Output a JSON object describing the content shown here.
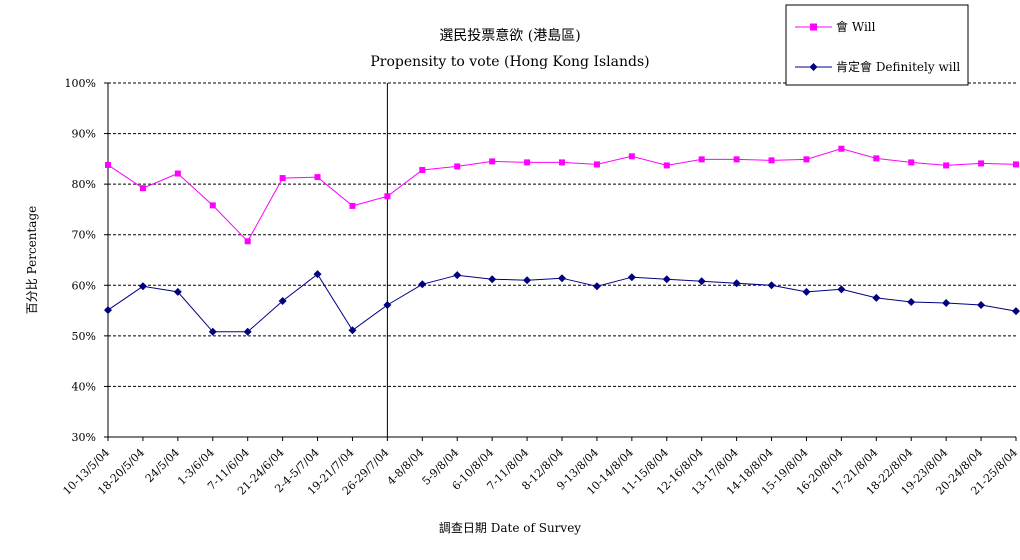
{
  "chart_data": {
    "type": "line",
    "title": "選民投票意欲 (港島區)",
    "subtitle": "Propensity to vote (Hong Kong Islands)",
    "xlabel": "調查日期 Date of Survey",
    "ylabel": "百分比 Percentage",
    "ylim": [
      30,
      100
    ],
    "yticks": [
      "30%",
      "40%",
      "50%",
      "60%",
      "70%",
      "80%",
      "90%",
      "100%"
    ],
    "ytick_values": [
      30,
      40,
      50,
      60,
      70,
      80,
      90,
      100
    ],
    "grid": true,
    "legend": "top-right",
    "categories": [
      "10-13/5/04",
      "18-20/5/04",
      "24/5/04",
      "1-3/6/04",
      "7-11/6/04",
      "21-24/6/04",
      "2-4-5/7/04",
      "19-21/7/04",
      "26-29/7/04",
      "4-8/8/04",
      "5-9/8/04",
      "6-10/8/04",
      "7-11/8/04",
      "8-12/8/04",
      "9-13/8/04",
      "10-14/8/04",
      "11-15/8/04",
      "12-16/8/04",
      "13-17/8/04",
      "14-18/8/04",
      "15-19/8/04",
      "16-20/8/04",
      "17-21/8/04",
      "18-22/8/04",
      "19-23/8/04",
      "20-24/8/04",
      "21-25/8/04"
    ],
    "vline_after": "26-29/7/04",
    "series": [
      {
        "name": "會 Will",
        "color": "#ff00ff",
        "marker": "square",
        "values": [
          83.8,
          79.2,
          82.1,
          75.8,
          68.7,
          81.2,
          81.4,
          75.7,
          77.6,
          82.8,
          83.5,
          84.5,
          84.3,
          84.3,
          83.9,
          85.5,
          83.7,
          84.9,
          84.9,
          84.7,
          84.9,
          87.0,
          85.1,
          84.3,
          83.7,
          84.1,
          83.9
        ]
      },
      {
        "name": "肯定會 Definitely will",
        "color": "#000080",
        "marker": "diamond",
        "values": [
          55.1,
          59.8,
          58.7,
          50.8,
          50.8,
          56.9,
          62.2,
          51.1,
          56.1,
          60.2,
          62.0,
          61.2,
          61.0,
          61.4,
          59.8,
          61.6,
          61.2,
          60.8,
          60.4,
          60.0,
          58.7,
          59.2,
          57.5,
          56.7,
          56.5,
          56.1,
          54.9
        ]
      }
    ]
  }
}
